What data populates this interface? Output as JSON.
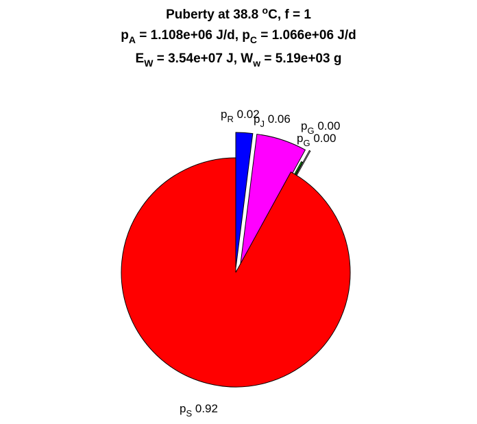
{
  "title": {
    "line1": {
      "pre": "Puberty at 38.8 ",
      "sup": "o",
      "post": "C, f = 1"
    },
    "line2": {
      "a_sym": "p",
      "a_sub": "A",
      "a_val": " = 1.108e+06 J/d,  ",
      "c_sym": "p",
      "c_sub": "C",
      "c_val": " = 1.066e+06 J/d"
    },
    "line3": {
      "e_sym": "E",
      "e_sub": "W",
      "e_val": " = 3.54e+07 J, ",
      "w_sym": "W",
      "w_sub": "w",
      "w_val": " = 5.19e+03 g"
    }
  },
  "chart_data": {
    "type": "pie",
    "start": "12 o'clock",
    "direction": "clockwise",
    "exploded": true,
    "slices": [
      {
        "symbol": "p",
        "sub": "R",
        "value": 0.02,
        "label": "0.02",
        "color": "#0000ff"
      },
      {
        "symbol": "p",
        "sub": "J",
        "value": 0.06,
        "label": "0.06",
        "color": "#ff00ff"
      },
      {
        "symbol": "p",
        "sub": "G",
        "value": 0.0,
        "label": "0.00",
        "color": "#ffffff"
      },
      {
        "symbol": "p",
        "sub": "G",
        "value": 0.0,
        "label": "0.00",
        "color": "#00ff00"
      },
      {
        "symbol": "p",
        "sub": "S",
        "value": 0.92,
        "label": "0.92",
        "color": "#ff0000"
      }
    ]
  }
}
